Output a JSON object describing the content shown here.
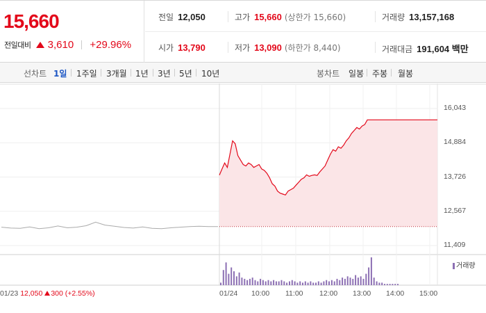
{
  "quote": {
    "price": "15,660",
    "change_label": "전일대비",
    "change_amount": "3,610",
    "change_pct": "+29.96%"
  },
  "stats": {
    "prev_close": {
      "label": "전일",
      "value": "12,050"
    },
    "high": {
      "label": "고가",
      "value": "15,660",
      "sub": "(상한가 15,660)"
    },
    "volume": {
      "label": "거래량",
      "value": "13,157,168"
    },
    "open": {
      "label": "시가",
      "value": "13,790"
    },
    "low": {
      "label": "저가",
      "value": "13,090",
      "sub": "(하한가 8,440)"
    },
    "amount": {
      "label": "거래대금",
      "value": "191,604 백만"
    }
  },
  "tabs": {
    "line_label": "선차트",
    "line_tabs": [
      "1일",
      "1주일",
      "3개월",
      "1년",
      "3년",
      "5년",
      "10년"
    ],
    "selected": "1일",
    "candle_label": "봉차트",
    "candle_tabs": [
      "일봉",
      "주봉",
      "월봉"
    ]
  },
  "chart_data": {
    "type": "line",
    "y_ticks": [
      "16,043",
      "14,884",
      "13,726",
      "12,567",
      "11,409"
    ],
    "ylim": [
      11409,
      16043
    ],
    "x_ticks": [
      "01/24",
      "10:00",
      "11:00",
      "12:00",
      "13:00",
      "14:00",
      "15:00"
    ],
    "volume_legend": "거래량",
    "prev_day": {
      "date": "01/23",
      "close": "12,050",
      "change": "300",
      "pct": "(+2.55%)"
    },
    "prev_close_ref": 12050,
    "prev_day_series": [
      12030,
      12000,
      11990,
      12040,
      11980,
      12010,
      12070,
      12010,
      12030,
      12080,
      12200,
      12100,
      12060,
      12020,
      12000,
      12040,
      11990,
      11980,
      12010,
      12030,
      12050,
      12060,
      12050,
      12050
    ],
    "intraday_series": [
      13790,
      14000,
      14200,
      14050,
      14500,
      14950,
      14850,
      14450,
      14300,
      14150,
      14100,
      14200,
      14150,
      14050,
      14100,
      14150,
      14000,
      13950,
      13850,
      13700,
      13500,
      13420,
      13250,
      13180,
      13150,
      13120,
      13250,
      13300,
      13350,
      13450,
      13550,
      13650,
      13700,
      13800,
      13750,
      13780,
      13800,
      13780,
      13900,
      14000,
      14100,
      14300,
      14500,
      14650,
      14600,
      14750,
      14700,
      14800,
      14950,
      15050,
      15200,
      15300,
      15400,
      15350,
      15450,
      15500,
      15660,
      15660,
      15660,
      15660,
      15660,
      15660,
      15660,
      15660,
      15660,
      15660,
      15660,
      15660
    ],
    "intraday_volume": [
      2,
      12,
      18,
      9,
      14,
      11,
      7,
      10,
      6,
      5,
      4,
      5,
      6,
      4,
      3,
      5,
      4,
      3,
      4,
      3,
      4,
      3,
      3,
      4,
      3,
      2,
      3,
      4,
      3,
      2,
      3,
      2,
      3,
      2,
      3,
      2,
      2,
      3,
      2,
      3,
      4,
      3,
      4,
      3,
      5,
      4,
      6,
      5,
      7,
      6,
      5,
      8,
      6,
      7,
      5,
      9,
      14,
      22,
      6,
      3,
      2,
      2,
      1,
      1,
      1,
      1,
      1,
      1
    ],
    "colors": {
      "line": "#e3081a",
      "fill": "#fbe5e7",
      "prev_line": "#aaaaaa",
      "volume": "#8c6fb3"
    }
  }
}
